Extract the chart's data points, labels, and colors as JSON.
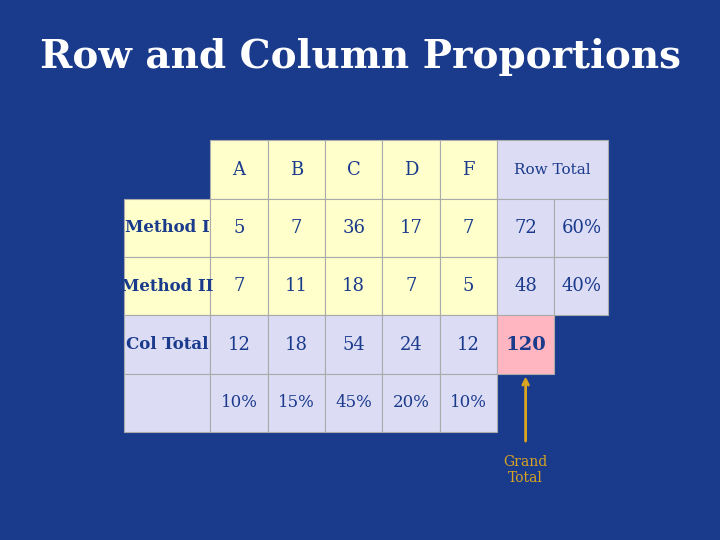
{
  "title": "Row and Column Proportions",
  "title_color": "#FFFFFF",
  "title_fontsize": 28,
  "bg_color": "#1a3a8c",
  "col_headers": [
    "A",
    "B",
    "C",
    "D",
    "F",
    "Row Total"
  ],
  "row_headers": [
    "Method I",
    "Method II",
    "Col Total",
    ""
  ],
  "data_values": [
    [
      "5",
      "7",
      "36",
      "17",
      "7",
      "72",
      "60%"
    ],
    [
      "7",
      "11",
      "18",
      "7",
      "5",
      "48",
      "40%"
    ],
    [
      "12",
      "18",
      "54",
      "24",
      "12",
      "120",
      ""
    ],
    [
      "10%",
      "15%",
      "45%",
      "20%",
      "10%",
      "",
      ""
    ]
  ],
  "cell_color_yellow": "#FFFFCC",
  "cell_color_lavender": "#DCDCF5",
  "cell_color_pink": "#FFB6C1",
  "text_color_dark": "#1a3a8c",
  "grand_total_arrow_color": "#DAA520",
  "grand_total_text_color": "#DAA520"
}
